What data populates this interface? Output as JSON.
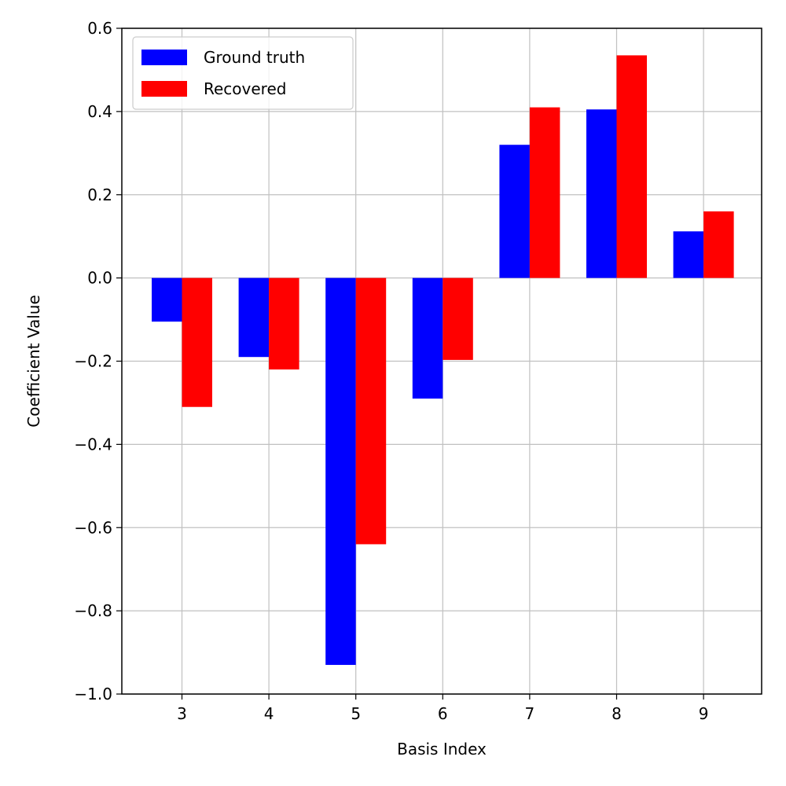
{
  "chart_data": {
    "type": "bar",
    "title": "",
    "xlabel": "Basis Index",
    "ylabel": "Coefficient Value",
    "categories": [
      "3",
      "4",
      "5",
      "6",
      "7",
      "8",
      "9"
    ],
    "series": [
      {
        "name": "Ground truth",
        "color": "#0000ff",
        "values": [
          -0.105,
          -0.19,
          -0.93,
          -0.29,
          0.32,
          0.405,
          0.112
        ]
      },
      {
        "name": "Recovered",
        "color": "#ff0000",
        "values": [
          -0.31,
          -0.22,
          -0.64,
          -0.197,
          0.41,
          0.535,
          0.16
        ]
      }
    ],
    "ylim": [
      -1.0,
      0.6
    ],
    "yticks": [
      -1.0,
      -0.8,
      -0.6,
      -0.4,
      -0.2,
      0.0,
      0.2,
      0.4,
      0.6
    ],
    "ytick_labels": [
      "−1.0",
      "−0.8",
      "−0.6",
      "−0.4",
      "−0.2",
      "0.0",
      "0.2",
      "0.4",
      "0.6"
    ],
    "grid": true,
    "legend_position": "top-left"
  }
}
